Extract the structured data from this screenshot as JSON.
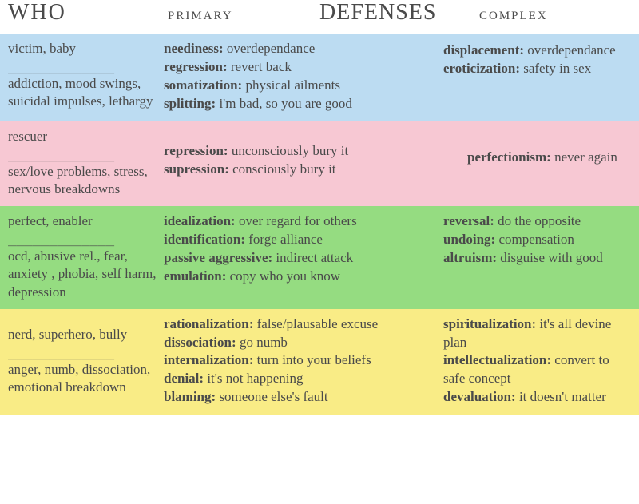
{
  "header": {
    "who": "WHO",
    "primary": "PRIMARY",
    "defenses": "DEFENSES",
    "complex": "COMPLEX"
  },
  "rows": [
    {
      "bg": "#bcdcf2",
      "who_top": "victim, baby",
      "who_sep": "_____________",
      "who_bot": "addiction, mood swings, suicidal impulses, lethargy",
      "primary": [
        {
          "term": "neediness:",
          "desc": " overdependance"
        },
        {
          "term": "regression:",
          "desc": "  revert back"
        },
        {
          "term": "somatization:",
          "desc": "  physical ailments"
        },
        {
          "term": "splitting:",
          "desc": "  i'm bad, so you are good"
        }
      ],
      "complex": [
        {
          "term": "displacement:",
          "desc": " overdependance"
        },
        {
          "term": "eroticization:",
          "desc": "  safety in sex"
        }
      ]
    },
    {
      "bg": "#f7c8d3",
      "who_top": "rescuer",
      "who_sep": "_____________",
      "who_bot": "sex/love problems, stress, nervous breakdowns",
      "primary": [
        {
          "term": "repression:",
          "desc": " unconsciously bury it"
        },
        {
          "term": "supression:",
          "desc": "  consciously bury it"
        }
      ],
      "complex": [
        {
          "term": "perfectionism:",
          "desc": " never again"
        }
      ]
    },
    {
      "bg": "#95dc81",
      "who_top": "perfect, enabler",
      "who_sep": "_____________",
      "who_bot": "ocd, abusive rel., fear, anxiety , phobia, self harm, depression",
      "primary": [
        {
          "term": "idealization:",
          "desc": " over regard for others"
        },
        {
          "term": "identification:",
          "desc": "  forge alliance"
        },
        {
          "term": "passive aggressive:",
          "desc": "  indirect attack"
        },
        {
          "term": "emulation:",
          "desc": "  copy who you know"
        }
      ],
      "complex": [
        {
          "term": "reversal:",
          "desc": " do the opposite"
        },
        {
          "term": "undoing:",
          "desc": "  compensation"
        },
        {
          "term": "altruism:",
          "desc": "  disguise with good"
        }
      ]
    },
    {
      "bg": "#f9ec86",
      "who_top": "nerd, superhero, bully",
      "who_sep": "_____________",
      "who_bot": "anger, numb, dissociation, emotional breakdown",
      "primary": [
        {
          "term": "rationalization:",
          "desc": " false/plausable excuse"
        },
        {
          "term": "dissociation:",
          "desc": "  go numb"
        },
        {
          "term": "internalization:",
          "desc": "  turn into your beliefs"
        },
        {
          "term": "denial:",
          "desc": "  it's not happening"
        },
        {
          "term": "blaming:",
          "desc": "  someone else's fault"
        }
      ],
      "complex": [
        {
          "term": "spiritualization:",
          "desc": " it's all devine plan"
        },
        {
          "term": "intellectualization:",
          "desc": "  convert to safe concept"
        },
        {
          "term": "devaluation:",
          "desc": "  it doesn't matter"
        }
      ]
    }
  ]
}
